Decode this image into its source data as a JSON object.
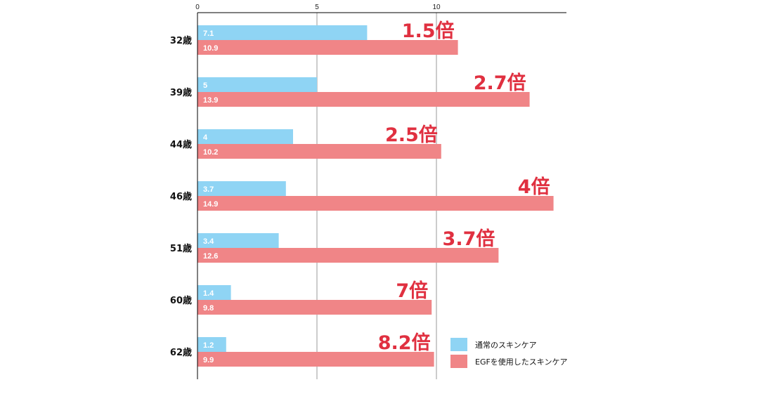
{
  "chart_data": {
    "type": "bar",
    "orientation": "horizontal",
    "categories": [
      "32歳",
      "39歳",
      "44歳",
      "46歳",
      "51歳",
      "60歳",
      "62歳"
    ],
    "series": [
      {
        "name": "通常のスキンケア",
        "color": "#8fd4f4",
        "values": [
          7.1,
          5,
          4,
          3.7,
          3.4,
          1.4,
          1.2
        ]
      },
      {
        "name": "EGFを使用したスキンケア",
        "color": "#f08587",
        "values": [
          10.9,
          13.9,
          10.2,
          14.9,
          12.6,
          9.8,
          9.9
        ]
      }
    ],
    "annotations": [
      "1.5倍",
      "2.7倍",
      "2.5倍",
      "4倍",
      "3.7倍",
      "7倍",
      "8.2倍"
    ],
    "annotation_color": "#e03040",
    "xlim": [
      0,
      15.4
    ],
    "xticks": [
      0,
      5,
      10
    ],
    "grid": true,
    "legend_position": "bottom-right"
  }
}
